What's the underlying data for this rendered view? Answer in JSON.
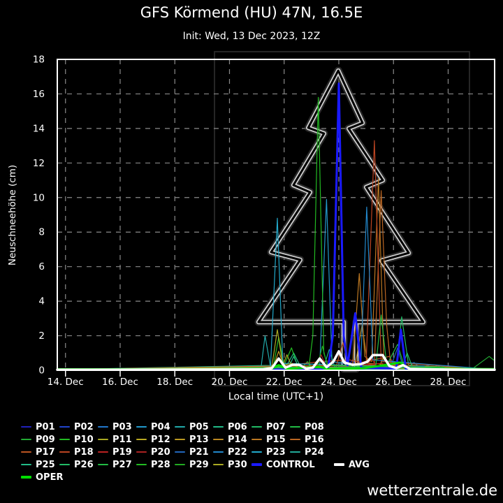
{
  "header": {
    "title": "GFS Körmend (HU) 47N, 16.5E",
    "subtitle": "Init: Wed, 13 Dec 2023, 12Z"
  },
  "watermark": "wetterzentrale.de",
  "chart_data": {
    "type": "line",
    "title": "GFS Körmend (HU) 47N, 16.5E",
    "xlabel": "Local time (UTC+1)",
    "ylabel": "Neuschneehöhe (cm)",
    "x_domain": [
      13.7,
      29.7
    ],
    "ylim": [
      0,
      18
    ],
    "grid": "dashed",
    "background": "#000000",
    "frame_color": "#ffffff",
    "grid_color": "#8a8a8a",
    "x_ticks": [
      {
        "label": "14. Dec",
        "d": 14
      },
      {
        "label": "16. Dec",
        "d": 16
      },
      {
        "label": "18. Dec",
        "d": 18
      },
      {
        "label": "20. Dec",
        "d": 20
      },
      {
        "label": "22. Dec",
        "d": 22
      },
      {
        "label": "24. Dec",
        "d": 24
      },
      {
        "label": "26. Dec",
        "d": 26
      },
      {
        "label": "28. Dec",
        "d": 28
      }
    ],
    "y_ticks": [
      0,
      2,
      4,
      6,
      8,
      10,
      12,
      14,
      16,
      18
    ],
    "tree_outline": {
      "color": "#d0d0d0",
      "points": [
        [
          23.98,
          17.35
        ],
        [
          22.88,
          14.04
        ],
        [
          23.46,
          13.71
        ],
        [
          22.34,
          10.72
        ],
        [
          22.95,
          10.31
        ],
        [
          21.52,
          6.84
        ],
        [
          22.59,
          6.39
        ],
        [
          21.06,
          2.79
        ],
        [
          24.18,
          2.79
        ],
        [
          24.18,
          0.08
        ],
        [
          24.64,
          0.08
        ],
        [
          24.64,
          2.79
        ],
        [
          27.09,
          2.79
        ],
        [
          25.56,
          6.35
        ],
        [
          26.56,
          6.79
        ],
        [
          25.0,
          10.6
        ],
        [
          25.61,
          11.0
        ],
        [
          24.36,
          14.0
        ],
        [
          24.87,
          14.32
        ]
      ]
    },
    "series": [
      {
        "name": "P01",
        "color": "#2222bb",
        "width": 1.2,
        "points": [
          [
            24.3,
            0.1
          ],
          [
            24.5,
            0.6
          ],
          [
            24.7,
            0.1
          ]
        ]
      },
      {
        "name": "P02",
        "color": "#2244cc",
        "width": 1.2,
        "points": [
          [
            27.0,
            0.05
          ],
          [
            27.25,
            0.3
          ],
          [
            27.5,
            0.08
          ]
        ]
      },
      {
        "name": "P03",
        "color": "#2277cc",
        "width": 1.2,
        "points": [
          [
            26.5,
            0.1
          ],
          [
            26.75,
            0.45
          ],
          [
            27.0,
            0.1
          ]
        ]
      },
      {
        "name": "P04",
        "color": "#2299cc",
        "width": 1.2,
        "points": [
          [
            23.3,
            0.2
          ],
          [
            23.55,
            9.9
          ],
          [
            23.75,
            0.5
          ],
          [
            24.6,
            0.3
          ]
        ]
      },
      {
        "name": "P05",
        "color": "#22aaaa",
        "width": 1.2,
        "points": [
          [
            21.15,
            0.1
          ],
          [
            21.3,
            2.0
          ],
          [
            21.5,
            0.2
          ]
        ]
      },
      {
        "name": "P06",
        "color": "#22bb88",
        "width": 1.2,
        "points": [
          [
            22.1,
            0.3
          ],
          [
            22.35,
            1.0
          ],
          [
            22.6,
            0.2
          ]
        ]
      },
      {
        "name": "P07",
        "color": "#22bb66",
        "width": 1.2,
        "points": [
          [
            26.1,
            0.2
          ],
          [
            26.3,
            3.1
          ],
          [
            26.55,
            0.3
          ]
        ]
      },
      {
        "name": "P08",
        "color": "#22bb44",
        "width": 1.2,
        "points": [
          [
            22.6,
            0.05
          ],
          [
            22.85,
            0.5
          ],
          [
            23.05,
            0.1
          ]
        ]
      },
      {
        "name": "P09",
        "color": "#22aa33",
        "width": 1.2,
        "points": [
          [
            28.9,
            0.1
          ],
          [
            29.5,
            0.8
          ],
          [
            29.7,
            0.55
          ]
        ]
      },
      {
        "name": "P10",
        "color": "#22bb22",
        "width": 1.2,
        "points": [
          [
            21.6,
            0.2
          ],
          [
            21.8,
            1.9
          ],
          [
            22.0,
            0.3
          ],
          [
            22.27,
            1.3
          ],
          [
            22.5,
            0.2
          ]
        ]
      },
      {
        "name": "P11",
        "color": "#aaaa22",
        "width": 1.2,
        "points": [
          [
            21.9,
            0.1
          ],
          [
            22.1,
            0.9
          ],
          [
            22.3,
            0.15
          ]
        ]
      },
      {
        "name": "P12",
        "color": "#bbaa22",
        "width": 1.2,
        "points": [
          [
            25.45,
            0.1
          ],
          [
            25.65,
            0.8
          ],
          [
            25.85,
            0.1
          ]
        ]
      },
      {
        "name": "P13",
        "color": "#bb9922",
        "width": 1.2,
        "points": [
          [
            21.6,
            0.15
          ],
          [
            21.8,
            1.1
          ],
          [
            22.0,
            0.2
          ]
        ]
      },
      {
        "name": "P14",
        "color": "#bb8822",
        "width": 1.2,
        "points": [
          [
            24.6,
            0.3
          ],
          [
            24.85,
            2.6
          ],
          [
            25.05,
            0.4
          ]
        ]
      },
      {
        "name": "P15",
        "color": "#bb7722",
        "width": 1.2,
        "points": [
          [
            24.5,
            0.2
          ],
          [
            24.75,
            5.6
          ],
          [
            24.95,
            0.8
          ],
          [
            25.2,
            0.5
          ],
          [
            25.45,
            11.1
          ],
          [
            25.65,
            0.5
          ]
        ]
      },
      {
        "name": "P16",
        "color": "#bb6622",
        "width": 1.2,
        "points": [
          [
            25.3,
            0.3
          ],
          [
            25.55,
            10.4
          ],
          [
            25.75,
            2.6
          ],
          [
            25.9,
            0.3
          ],
          [
            27.4,
            0.05
          ],
          [
            27.6,
            0.3
          ],
          [
            27.85,
            0.05
          ]
        ]
      },
      {
        "name": "P17",
        "color": "#bb5522",
        "width": 1.2,
        "points": [
          [
            23.9,
            0.2
          ],
          [
            24.15,
            1.6
          ],
          [
            24.35,
            0.3
          ],
          [
            25.85,
            0.8
          ],
          [
            26.05,
            0.2
          ]
        ]
      },
      {
        "name": "P18",
        "color": "#bb4422",
        "width": 1.2,
        "points": [
          [
            22.0,
            0.25
          ],
          [
            23.3,
            0.5
          ],
          [
            24.4,
            0.6
          ],
          [
            25.0,
            0.4
          ],
          [
            25.3,
            13.3
          ],
          [
            25.55,
            0.5
          ]
        ]
      },
      {
        "name": "P19",
        "color": "#bb2222",
        "width": 1.2,
        "points": [
          [
            23.15,
            0.1
          ],
          [
            23.35,
            0.9
          ],
          [
            23.55,
            0.15
          ],
          [
            25.6,
            0.4
          ],
          [
            25.8,
            0.1
          ]
        ]
      },
      {
        "name": "P20",
        "color": "#aa2222",
        "width": 1.2,
        "points": [
          [
            25.0,
            0.15
          ],
          [
            25.2,
            0.7
          ],
          [
            25.4,
            0.1
          ]
        ]
      },
      {
        "name": "P21",
        "color": "#2266bb",
        "width": 1.2,
        "points": [
          [
            25.9,
            0.2
          ],
          [
            26.15,
            1.3
          ],
          [
            26.35,
            0.2
          ],
          [
            27.1,
            0.25
          ],
          [
            27.3,
            0.08
          ]
        ]
      },
      {
        "name": "P22",
        "color": "#2288cc",
        "width": 1.2,
        "points": [
          [
            24.8,
            0.2
          ],
          [
            25.02,
            9.45
          ],
          [
            25.25,
            0.6
          ]
        ]
      },
      {
        "name": "P23",
        "color": "#22aacc",
        "width": 1.2,
        "points": [
          [
            21.5,
            0.2
          ],
          [
            21.75,
            8.8
          ],
          [
            21.95,
            0.4
          ]
        ]
      },
      {
        "name": "P24",
        "color": "#22aa99",
        "width": 1.2,
        "points": [
          [
            23.45,
            0.2
          ],
          [
            23.65,
            1.2
          ],
          [
            23.85,
            0.2
          ]
        ]
      },
      {
        "name": "P25",
        "color": "#22bb88",
        "width": 1.2,
        "points": [
          [
            22.15,
            0.1
          ],
          [
            22.35,
            0.8
          ],
          [
            22.55,
            0.1
          ]
        ]
      },
      {
        "name": "P26",
        "color": "#22bb66",
        "width": 1.2,
        "points": [
          [
            26.3,
            0.1
          ],
          [
            26.5,
            1.0
          ],
          [
            26.7,
            0.15
          ]
        ]
      },
      {
        "name": "P27",
        "color": "#22bb44",
        "width": 1.2,
        "points": [
          [
            25.35,
            0.2
          ],
          [
            25.55,
            3.2
          ],
          [
            25.75,
            0.3
          ],
          [
            26.15,
            1.5
          ],
          [
            26.4,
            0.2
          ],
          [
            27.8,
            0.2
          ],
          [
            28.0,
            0.05
          ]
        ]
      },
      {
        "name": "P28",
        "color": "#22bb22",
        "width": 1.2,
        "points": [
          [
            22.9,
            0.1
          ],
          [
            23.05,
            2.0
          ],
          [
            23.25,
            15.8
          ],
          [
            23.45,
            1.0
          ],
          [
            23.6,
            0.3
          ]
        ]
      },
      {
        "name": "P29",
        "color": "#22aa22",
        "width": 1.2,
        "points": [
          [
            23.2,
            0.1
          ],
          [
            23.4,
            1.4
          ],
          [
            23.6,
            0.15
          ]
        ]
      },
      {
        "name": "P30",
        "color": "#aaaa22",
        "width": 1.2,
        "points": [
          [
            21.55,
            0.2
          ],
          [
            21.75,
            2.35
          ],
          [
            21.95,
            0.3
          ],
          [
            22.3,
            0.4
          ],
          [
            22.5,
            0.15
          ]
        ]
      },
      {
        "name": "CONTROL",
        "color": "#1a1aff",
        "width": 3,
        "points": [
          [
            23.6,
            0.05
          ],
          [
            23.78,
            2.0
          ],
          [
            24.0,
            16.6
          ],
          [
            24.18,
            2.0
          ],
          [
            24.32,
            0.3
          ],
          [
            24.6,
            3.3
          ],
          [
            24.82,
            0.15
          ],
          [
            26.1,
            0.1
          ],
          [
            26.27,
            2.35
          ],
          [
            26.45,
            0.1
          ]
        ]
      },
      {
        "name": "OPER",
        "color": "#00dd00",
        "width": 3,
        "full": true,
        "points": [
          [
            13.7,
            0.06
          ],
          [
            21.5,
            0.06
          ],
          [
            21.8,
            0.3
          ],
          [
            22.1,
            0.08
          ],
          [
            23.3,
            0.2
          ],
          [
            23.6,
            0.06
          ],
          [
            24.9,
            0.12
          ],
          [
            25.5,
            0.25
          ],
          [
            26.25,
            0.45
          ],
          [
            26.55,
            0.1
          ],
          [
            29.7,
            0.07
          ]
        ]
      },
      {
        "name": "AVG",
        "color": "#ffffff",
        "width": 3.5,
        "full": true,
        "points": [
          [
            13.7,
            0.03
          ],
          [
            21.2,
            0.05
          ],
          [
            21.55,
            0.12
          ],
          [
            21.8,
            0.68
          ],
          [
            22.05,
            0.15
          ],
          [
            22.3,
            0.32
          ],
          [
            22.55,
            0.32
          ],
          [
            22.8,
            0.1
          ],
          [
            23.05,
            0.15
          ],
          [
            23.3,
            0.68
          ],
          [
            23.55,
            0.18
          ],
          [
            23.8,
            0.5
          ],
          [
            24.0,
            1.1
          ],
          [
            24.2,
            0.45
          ],
          [
            24.5,
            0.32
          ],
          [
            24.8,
            0.35
          ],
          [
            25.05,
            0.5
          ],
          [
            25.25,
            0.88
          ],
          [
            25.6,
            0.88
          ],
          [
            25.85,
            0.25
          ],
          [
            26.1,
            0.12
          ],
          [
            26.35,
            0.3
          ],
          [
            26.6,
            0.08
          ],
          [
            27.5,
            0.05
          ],
          [
            29.7,
            0.03
          ]
        ]
      }
    ]
  },
  "legend": {
    "rows": [
      [
        {
          "label": "P01",
          "color": "#2222bb"
        },
        {
          "label": "P02",
          "color": "#2244cc"
        },
        {
          "label": "P03",
          "color": "#2277cc"
        },
        {
          "label": "P04",
          "color": "#2299cc"
        },
        {
          "label": "P05",
          "color": "#22aaaa"
        },
        {
          "label": "P06",
          "color": "#22bb88"
        },
        {
          "label": "P07",
          "color": "#22bb66"
        },
        {
          "label": "P08",
          "color": "#22bb44"
        }
      ],
      [
        {
          "label": "P09",
          "color": "#22aa33"
        },
        {
          "label": "P10",
          "color": "#22bb22"
        },
        {
          "label": "P11",
          "color": "#aaaa22"
        },
        {
          "label": "P12",
          "color": "#bbaa22"
        },
        {
          "label": "P13",
          "color": "#bb9922"
        },
        {
          "label": "P14",
          "color": "#bb8822"
        },
        {
          "label": "P15",
          "color": "#bb7722"
        },
        {
          "label": "P16",
          "color": "#bb6622"
        }
      ],
      [
        {
          "label": "P17",
          "color": "#bb5522"
        },
        {
          "label": "P18",
          "color": "#bb4422"
        },
        {
          "label": "P19",
          "color": "#bb2222"
        },
        {
          "label": "P20",
          "color": "#aa2222"
        },
        {
          "label": "P21",
          "color": "#2266bb"
        },
        {
          "label": "P22",
          "color": "#2288cc"
        },
        {
          "label": "P23",
          "color": "#22aacc"
        },
        {
          "label": "P24",
          "color": "#22aa99"
        }
      ],
      [
        {
          "label": "P25",
          "color": "#22bb88"
        },
        {
          "label": "P26",
          "color": "#22bb66"
        },
        {
          "label": "P27",
          "color": "#22bb44"
        },
        {
          "label": "P28",
          "color": "#22bb22"
        },
        {
          "label": "P29",
          "color": "#22aa22"
        },
        {
          "label": "P30",
          "color": "#aaaa22"
        },
        {
          "label": "CONTROL",
          "color": "#1a1aff",
          "thick": true
        },
        {
          "label": "AVG",
          "color": "#ffffff",
          "thick": true
        }
      ],
      [
        {
          "label": "OPER",
          "color": "#00dd00",
          "thick": true
        }
      ]
    ]
  }
}
